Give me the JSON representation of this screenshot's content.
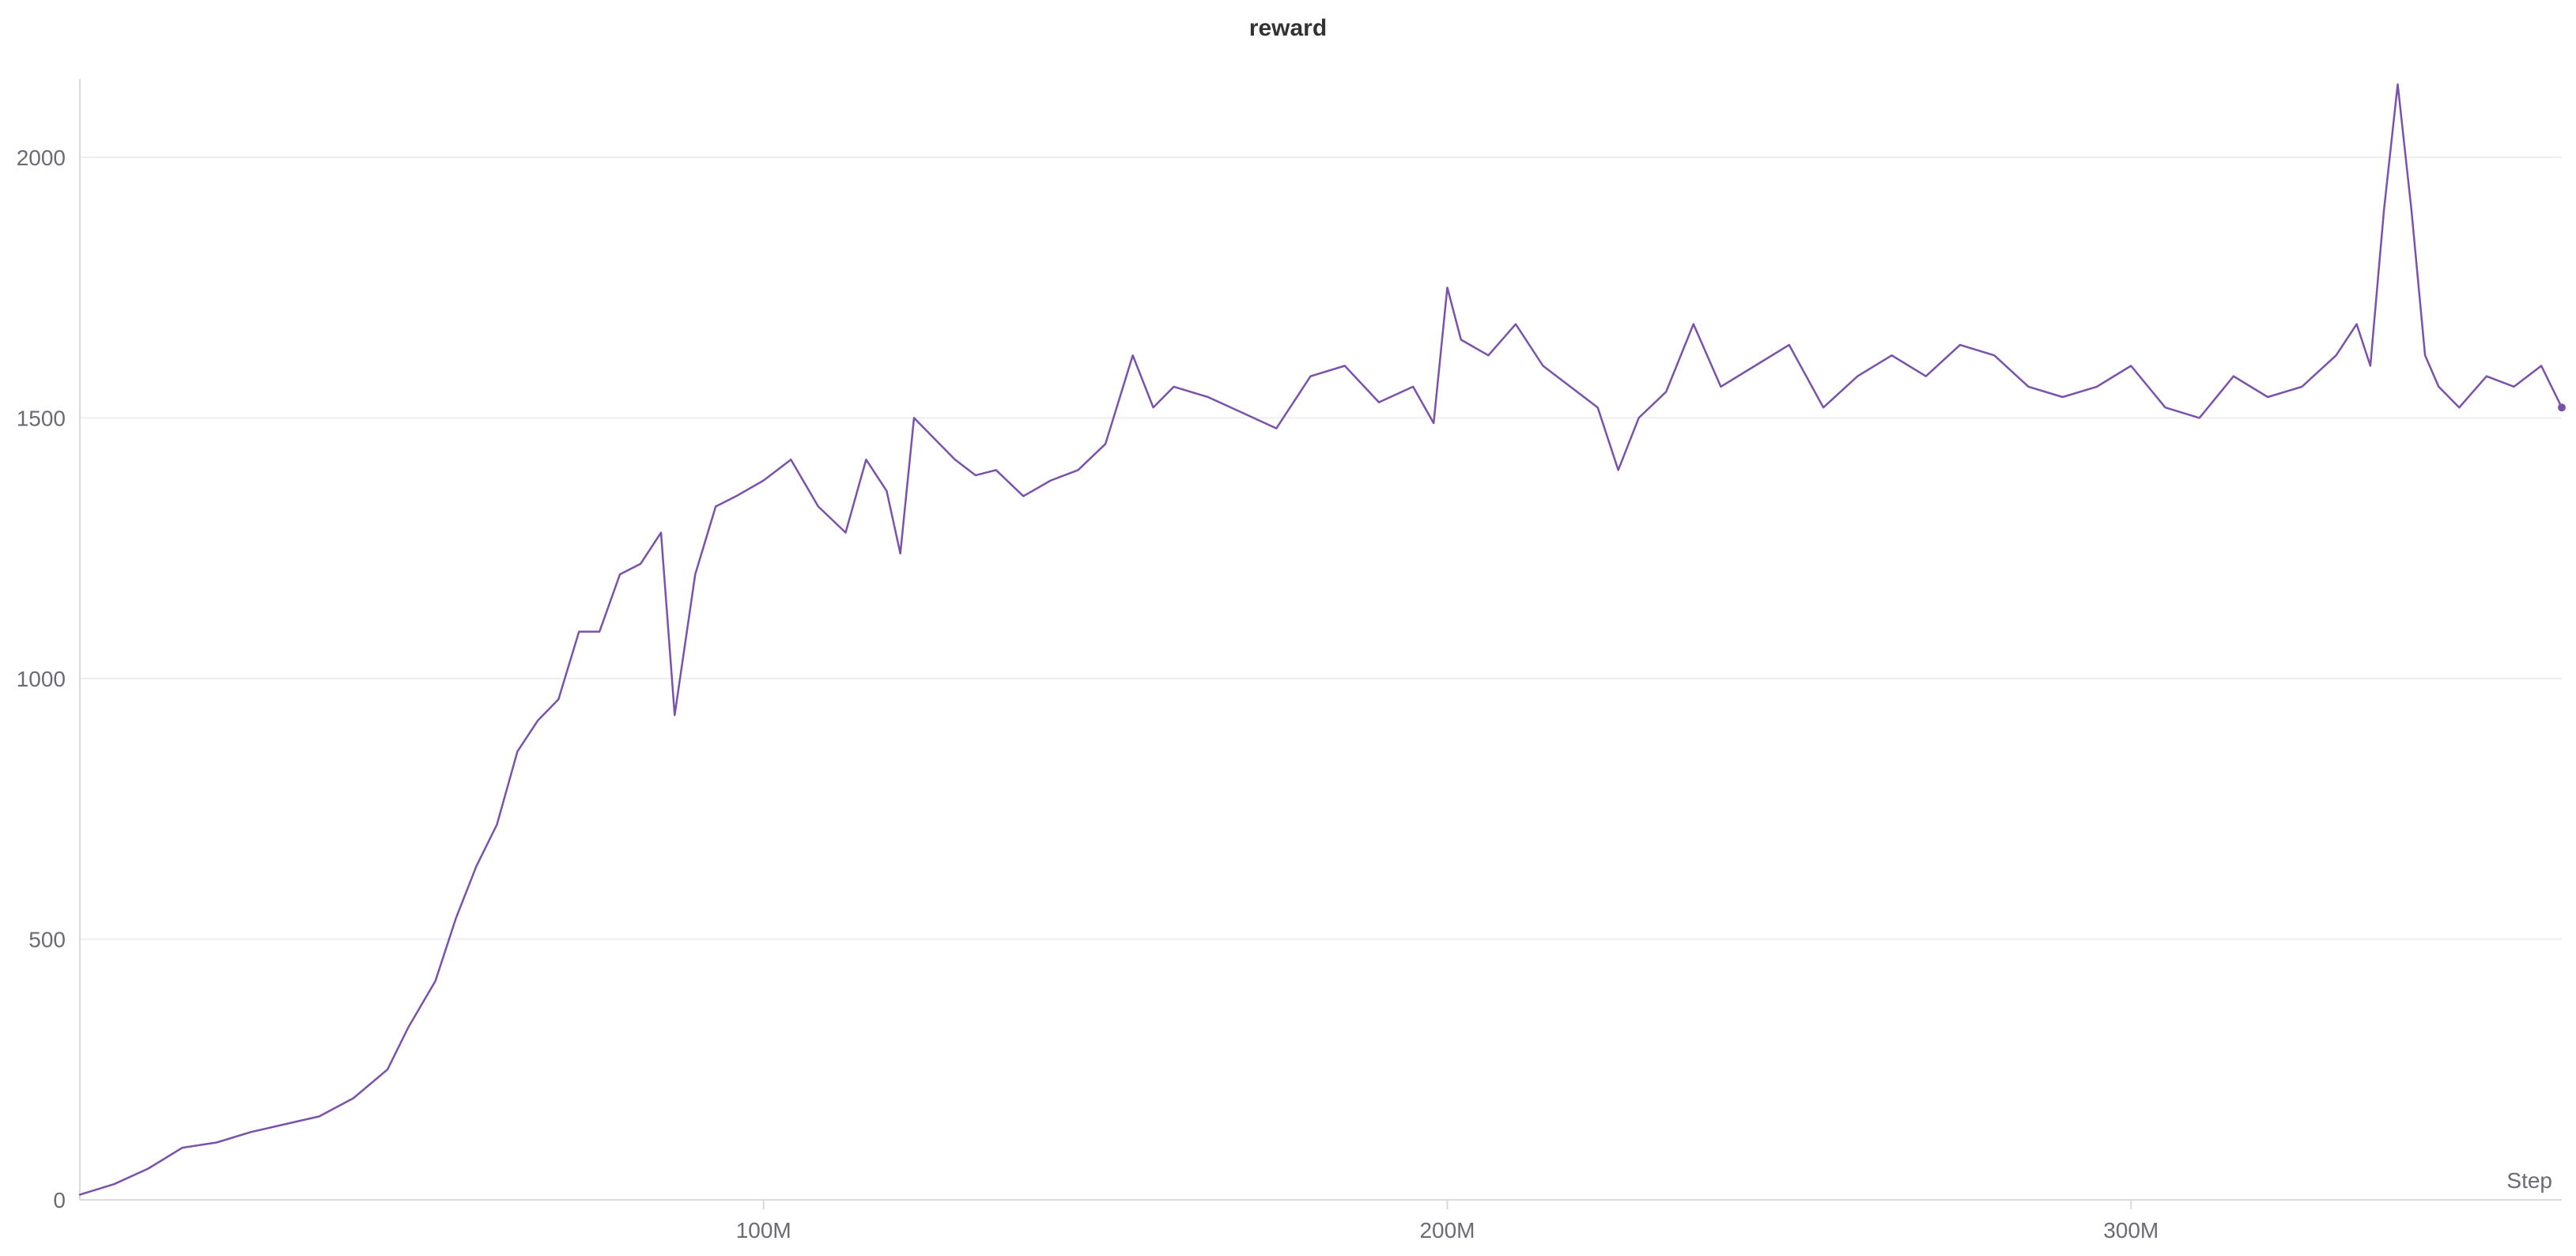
{
  "chart_data": {
    "type": "line",
    "title": "reward",
    "xlabel": "Step",
    "ylabel": "",
    "xlim": [
      0,
      363000000
    ],
    "ylim": [
      0,
      2150
    ],
    "grid": true,
    "legend": "none",
    "x_ticks": [
      {
        "value": 100000000,
        "label": "100M"
      },
      {
        "value": 200000000,
        "label": "200M"
      },
      {
        "value": 300000000,
        "label": "300M"
      }
    ],
    "y_ticks": [
      {
        "value": 0,
        "label": "0"
      },
      {
        "value": 500,
        "label": "500"
      },
      {
        "value": 1000,
        "label": "1000"
      },
      {
        "value": 1500,
        "label": "1500"
      },
      {
        "value": 2000,
        "label": "2000"
      }
    ],
    "series": [
      {
        "color": "#7b52ab",
        "x": [
          0,
          5000000,
          10000000,
          15000000,
          20000000,
          25000000,
          30000000,
          35000000,
          40000000,
          45000000,
          48000000,
          52000000,
          55000000,
          58000000,
          61000000,
          64000000,
          67000000,
          70000000,
          73000000,
          76000000,
          79000000,
          82000000,
          85000000,
          87000000,
          90000000,
          93000000,
          96000000,
          100000000,
          104000000,
          108000000,
          112000000,
          115000000,
          118000000,
          120000000,
          122000000,
          125000000,
          128000000,
          131000000,
          134000000,
          138000000,
          142000000,
          146000000,
          150000000,
          154000000,
          157000000,
          160000000,
          165000000,
          170000000,
          175000000,
          180000000,
          185000000,
          190000000,
          195000000,
          198000000,
          200000000,
          202000000,
          206000000,
          210000000,
          214000000,
          218000000,
          222000000,
          225000000,
          228000000,
          232000000,
          236000000,
          240000000,
          245000000,
          250000000,
          255000000,
          260000000,
          265000000,
          270000000,
          275000000,
          280000000,
          285000000,
          290000000,
          295000000,
          300000000,
          305000000,
          310000000,
          315000000,
          320000000,
          325000000,
          330000000,
          333000000,
          335000000,
          337000000,
          339000000,
          341000000,
          343000000,
          345000000,
          348000000,
          352000000,
          356000000,
          360000000,
          363000000
        ],
        "y": [
          10,
          30,
          60,
          100,
          110,
          130,
          145,
          160,
          195,
          250,
          330,
          420,
          540,
          640,
          720,
          860,
          920,
          960,
          1090,
          1090,
          1200,
          1220,
          1280,
          930,
          1200,
          1330,
          1350,
          1380,
          1420,
          1330,
          1280,
          1420,
          1360,
          1240,
          1500,
          1460,
          1420,
          1390,
          1400,
          1350,
          1380,
          1400,
          1450,
          1620,
          1520,
          1560,
          1540,
          1510,
          1480,
          1580,
          1600,
          1530,
          1560,
          1490,
          1750,
          1650,
          1620,
          1680,
          1600,
          1560,
          1520,
          1400,
          1500,
          1550,
          1680,
          1560,
          1600,
          1640,
          1520,
          1580,
          1620,
          1580,
          1640,
          1620,
          1560,
          1540,
          1560,
          1600,
          1520,
          1500,
          1580,
          1540,
          1560,
          1620,
          1680,
          1600,
          1900,
          2140,
          1900,
          1620,
          1560,
          1520,
          1580,
          1560,
          1600,
          1520
        ]
      }
    ]
  }
}
